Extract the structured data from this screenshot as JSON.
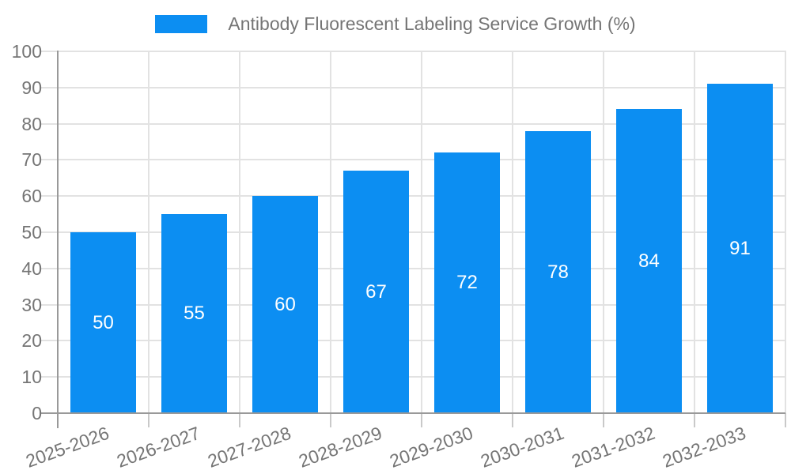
{
  "chart_data": {
    "type": "bar",
    "title": "Antibody Fluorescent Labeling Service Growth (%)",
    "categories": [
      "2025-2026",
      "2026-2027",
      "2027-2028",
      "2028-2029",
      "2029-2030",
      "2030-2031",
      "2031-2032",
      "2032-2033"
    ],
    "values": [
      50,
      55,
      60,
      67,
      72,
      78,
      84,
      91
    ],
    "xlabel": "",
    "ylabel": "",
    "ylim": [
      0,
      100
    ],
    "ytick_step": 10,
    "ytick_labels": [
      "0",
      "10",
      "20",
      "30",
      "40",
      "50",
      "60",
      "70",
      "80",
      "90",
      "100"
    ],
    "grid": "horizontal-and-vertical",
    "legend_position": "top-center",
    "x_label_rotation_deg": -20,
    "value_labels_shown": true,
    "value_label_position": "center-of-bar",
    "colors": {
      "bar": "#0C8EF2",
      "value_label": "#FFFFFF",
      "axis_line": "#999999",
      "gridline": "#E2E2E2",
      "tick": "#C9C9C9",
      "label_text": "#757575"
    }
  },
  "legend": {
    "swatch_color": "#0C8EF2"
  }
}
